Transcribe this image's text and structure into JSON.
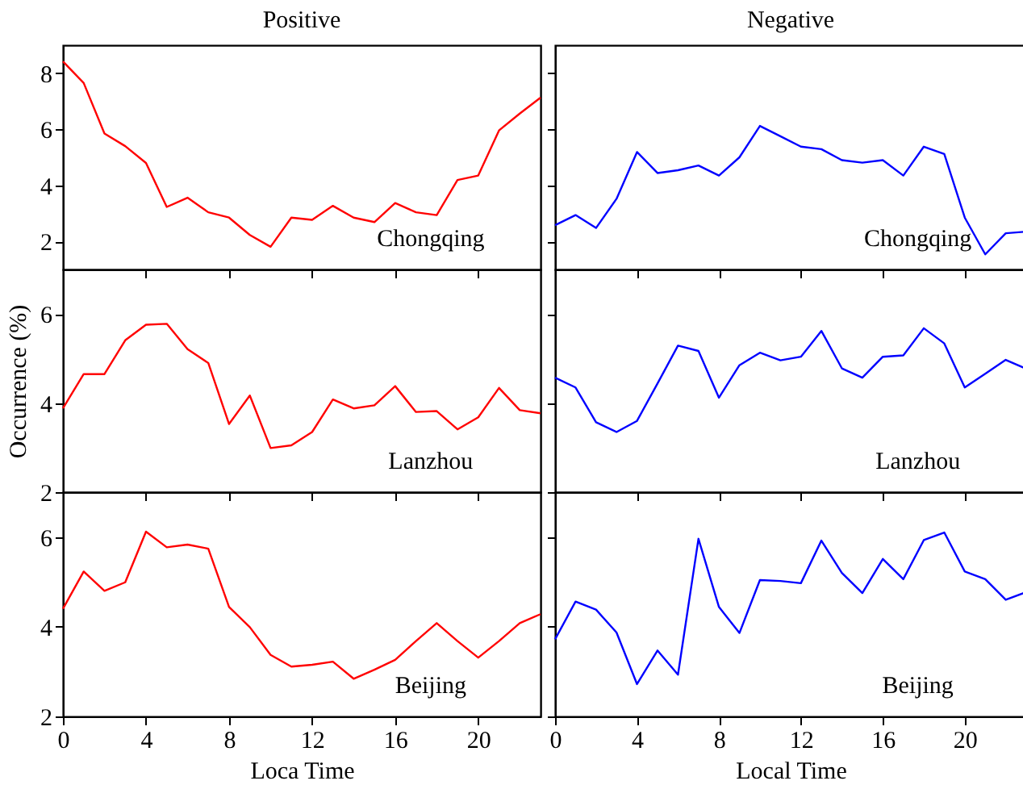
{
  "chart_data": [
    {
      "type": "line",
      "title": "Positive",
      "annotations": [
        "Chongqing"
      ],
      "x": [
        0,
        1,
        2,
        3,
        4,
        5,
        6,
        7,
        8,
        9,
        10,
        11,
        12,
        13,
        14,
        15,
        16,
        17,
        18,
        19,
        20,
        21,
        22,
        23
      ],
      "xlim": [
        0,
        23
      ],
      "xticks": [
        0,
        4,
        8,
        12,
        16,
        20
      ],
      "ylim": [
        1,
        9
      ],
      "yticks": [
        2,
        4,
        6,
        8
      ],
      "tick_labels": "y",
      "grid": false,
      "series": [
        {
          "color": "#ff0000",
          "values": [
            8.42,
            7.65,
            5.85,
            5.4,
            4.8,
            3.23,
            3.56,
            3.04,
            2.85,
            2.23,
            1.81,
            2.85,
            2.77,
            3.27,
            2.85,
            2.69,
            3.37,
            3.04,
            2.94,
            4.19,
            4.35,
            5.96,
            6.56,
            7.13
          ]
        }
      ]
    },
    {
      "type": "line",
      "title": "Negative",
      "annotations": [
        "Chongqing"
      ],
      "x": [
        0,
        1,
        2,
        3,
        4,
        5,
        6,
        7,
        8,
        9,
        10,
        11,
        12,
        13,
        14,
        15,
        16,
        17,
        18,
        19,
        20,
        21,
        22,
        23
      ],
      "xlim": [
        0,
        23
      ],
      "xticks": [
        0,
        4,
        8,
        12,
        16,
        20
      ],
      "ylim": [
        1,
        9
      ],
      "yticks": [
        2,
        4,
        6,
        8
      ],
      "tick_labels": false,
      "grid": false,
      "series": [
        {
          "color": "#0000ff",
          "values": [
            2.58,
            2.94,
            2.48,
            3.52,
            5.19,
            4.44,
            4.54,
            4.71,
            4.35,
            5.0,
            6.12,
            5.75,
            5.38,
            5.29,
            4.9,
            4.81,
            4.9,
            4.35,
            5.38,
            5.12,
            2.85,
            1.54,
            2.29,
            2.35
          ]
        }
      ]
    },
    {
      "type": "line",
      "ylabel": "Occurrence (%)",
      "annotations": [
        "Lanzhou"
      ],
      "x": [
        0,
        1,
        2,
        3,
        4,
        5,
        6,
        7,
        8,
        9,
        10,
        11,
        12,
        13,
        14,
        15,
        16,
        17,
        18,
        19,
        20,
        21,
        22,
        23
      ],
      "xlim": [
        0,
        23
      ],
      "xticks": [
        0,
        4,
        8,
        12,
        16,
        20
      ],
      "ylim": [
        2,
        7
      ],
      "yticks": [
        2,
        4,
        6
      ],
      "tick_labels": "y",
      "grid": false,
      "series": [
        {
          "color": "#ff0000",
          "values": [
            3.88,
            4.65,
            4.65,
            5.41,
            5.76,
            5.78,
            5.21,
            4.9,
            3.53,
            4.17,
            2.99,
            3.05,
            3.35,
            4.08,
            3.88,
            3.95,
            4.38,
            3.8,
            3.82,
            3.41,
            3.68,
            4.34,
            3.84,
            3.77
          ]
        }
      ]
    },
    {
      "type": "line",
      "annotations": [
        "Lanzhou"
      ],
      "x": [
        0,
        1,
        2,
        3,
        4,
        5,
        6,
        7,
        8,
        9,
        10,
        11,
        12,
        13,
        14,
        15,
        16,
        17,
        18,
        19,
        20,
        21,
        22,
        23
      ],
      "xlim": [
        0,
        23
      ],
      "xticks": [
        0,
        4,
        8,
        12,
        16,
        20
      ],
      "ylim": [
        2,
        7
      ],
      "yticks": [
        2,
        4,
        6
      ],
      "tick_labels": false,
      "grid": false,
      "series": [
        {
          "color": "#0000ff",
          "values": [
            4.57,
            4.35,
            3.57,
            3.35,
            3.6,
            4.44,
            5.29,
            5.17,
            4.12,
            4.85,
            5.13,
            4.96,
            5.04,
            5.62,
            4.78,
            4.57,
            5.04,
            5.07,
            5.68,
            5.34,
            4.35,
            4.66,
            4.97,
            4.77
          ]
        }
      ]
    },
    {
      "type": "line",
      "xlabel": "Loca Time",
      "annotations": [
        "Beijing"
      ],
      "x": [
        0,
        1,
        2,
        3,
        4,
        5,
        6,
        7,
        8,
        9,
        10,
        11,
        12,
        13,
        14,
        15,
        16,
        17,
        18,
        19,
        20,
        21,
        22,
        23
      ],
      "xlim": [
        0,
        23
      ],
      "xticks": [
        0,
        4,
        8,
        12,
        16,
        20
      ],
      "ylim": [
        2,
        7
      ],
      "yticks": [
        2,
        4,
        6
      ],
      "grid": false,
      "series": [
        {
          "color": "#ff0000",
          "values": [
            4.4,
            5.23,
            4.8,
            4.99,
            6.12,
            5.77,
            5.83,
            5.74,
            4.44,
            3.99,
            3.37,
            3.11,
            3.15,
            3.22,
            2.84,
            3.04,
            3.26,
            3.68,
            4.08,
            3.68,
            3.31,
            3.68,
            4.08,
            4.28
          ]
        }
      ]
    },
    {
      "type": "line",
      "xlabel": "Local Time",
      "annotations": [
        "Beijing"
      ],
      "x": [
        0,
        1,
        2,
        3,
        4,
        5,
        6,
        7,
        8,
        9,
        10,
        11,
        12,
        13,
        14,
        15,
        16,
        17,
        18,
        19,
        20,
        21,
        22,
        23
      ],
      "xlim": [
        0,
        23
      ],
      "xticks": [
        0,
        4,
        8,
        12,
        16,
        20
      ],
      "ylim": [
        2,
        7
      ],
      "yticks": [
        2,
        4,
        6
      ],
      "tick_labels": "x",
      "grid": false,
      "series": [
        {
          "color": "#0000ff",
          "values": [
            3.72,
            4.56,
            4.38,
            3.87,
            2.72,
            3.47,
            2.93,
            5.96,
            4.44,
            3.86,
            5.04,
            5.02,
            4.97,
            5.92,
            5.2,
            4.75,
            5.51,
            5.06,
            5.93,
            6.1,
            5.23,
            5.06,
            4.6,
            4.77
          ]
        }
      ]
    }
  ]
}
